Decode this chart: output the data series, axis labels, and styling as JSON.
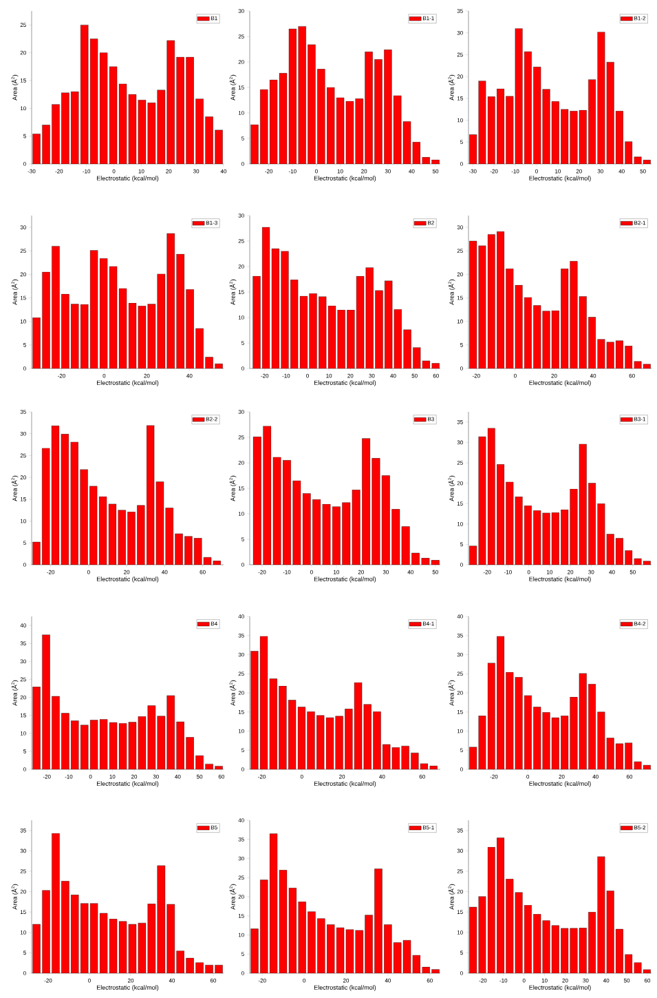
{
  "chart_data": [
    {
      "type": "histogram",
      "xlabel": "Electrostatic (kcal/mol)",
      "ylabel": "Area (Å$^{2}$)",
      "legend": "top right",
      "xlim": [
        -30,
        40
      ],
      "xticks": [
        -30,
        -20,
        -10,
        0,
        10,
        20,
        30,
        40
      ],
      "ylim": [
        0,
        27.5
      ],
      "yticks": [
        0,
        5,
        10,
        15,
        20,
        25
      ],
      "bins": [
        -30,
        -26.5,
        -23,
        -19.5,
        -16,
        -12.5,
        -9,
        -5.5,
        -2,
        1.5,
        5,
        8.5,
        12,
        15.5,
        19,
        22.5,
        26,
        29.5,
        33,
        36.5,
        40
      ],
      "series": [
        {
          "name": "B1",
          "color": "#ff0000",
          "values": [
            5.4,
            7.0,
            10.7,
            12.8,
            13.0,
            25.0,
            22.5,
            20.0,
            17.5,
            14.4,
            12.5,
            11.5,
            11.0,
            13.3,
            22.2,
            19.2,
            19.2,
            11.7,
            8.5,
            6.1
          ]
        }
      ]
    },
    {
      "type": "histogram",
      "xlabel": "Electrostatic (kcal/mol)",
      "ylabel": "Area (Å$^{2}$)",
      "legend": "top right",
      "xlim": [
        -28,
        52
      ],
      "xticks": [
        -20,
        -10,
        0,
        10,
        20,
        30,
        40,
        50
      ],
      "ylim": [
        0,
        30
      ],
      "yticks": [
        0,
        5,
        10,
        15,
        20,
        25,
        30
      ],
      "bins": [
        -28,
        -24,
        -20,
        -16,
        -12,
        -8,
        -4,
        0,
        4,
        8,
        12,
        16,
        20,
        24,
        28,
        32,
        36,
        40,
        44,
        48,
        52
      ],
      "series": [
        {
          "name": "B1-1",
          "color": "#ff0000",
          "values": [
            7.7,
            14.6,
            16.5,
            17.8,
            26.5,
            27.0,
            23.4,
            18.6,
            15.0,
            13.0,
            12.3,
            12.8,
            22.0,
            20.5,
            22.4,
            13.4,
            8.3,
            4.3,
            1.3,
            0.8
          ]
        }
      ]
    },
    {
      "type": "histogram",
      "xlabel": "Electrostatic (kcal/mol)",
      "ylabel": "Area (Å$^{2}$)",
      "legend": "top right",
      "xlim": [
        -32,
        54
      ],
      "xticks": [
        -30,
        -20,
        -10,
        0,
        10,
        20,
        30,
        40,
        50
      ],
      "ylim": [
        0,
        35
      ],
      "yticks": [
        0,
        5,
        10,
        15,
        20,
        25,
        30,
        35
      ],
      "bins": [
        -32,
        -27.7,
        -23.4,
        -19.1,
        -14.8,
        -10.5,
        -6.2,
        -1.9,
        2.4,
        6.7,
        11,
        15.3,
        19.6,
        23.9,
        28.2,
        32.5,
        36.8,
        41.1,
        45.4,
        49.7,
        54
      ],
      "series": [
        {
          "name": "B1-2",
          "color": "#ff0000",
          "values": [
            6.7,
            19.0,
            15.4,
            17.2,
            15.5,
            31.0,
            25.7,
            22.2,
            17.1,
            14.3,
            12.5,
            12.1,
            12.3,
            19.3,
            30.2,
            23.3,
            12.1,
            5.1,
            1.6,
            0.9
          ]
        }
      ]
    },
    {
      "type": "histogram",
      "xlabel": "Electrostatic (kcal/mol)",
      "ylabel": "Area (Å$^{2}$)",
      "legend": "top right",
      "xlim": [
        -34,
        56
      ],
      "xticks": [
        -20,
        0,
        20,
        40
      ],
      "ylim": [
        0,
        32.5
      ],
      "yticks": [
        0,
        5,
        10,
        15,
        20,
        25,
        30
      ],
      "bins": [
        -34,
        -29.5,
        -25,
        -20.5,
        -16,
        -11.5,
        -7,
        -2.5,
        2,
        6.5,
        11,
        15.5,
        20,
        24.5,
        29,
        33.5,
        38,
        42.5,
        47,
        51.5,
        56
      ],
      "series": [
        {
          "name": "B1-3",
          "color": "#ff0000",
          "values": [
            10.8,
            20.5,
            26.0,
            15.8,
            13.7,
            13.6,
            25.1,
            23.4,
            21.7,
            17.0,
            13.9,
            13.3,
            13.7,
            20.1,
            28.7,
            24.3,
            16.8,
            8.5,
            2.4,
            1.0
          ]
        }
      ]
    },
    {
      "type": "histogram",
      "xlabel": "Electrostatic (kcal/mol)",
      "ylabel": "Area (Å$^{2}$)",
      "legend": "top right",
      "xlim": [
        -27,
        62
      ],
      "xticks": [
        -20,
        -10,
        0,
        10,
        20,
        30,
        40,
        50,
        60
      ],
      "ylim": [
        0,
        30
      ],
      "yticks": [
        0,
        5,
        10,
        15,
        20,
        25,
        30
      ],
      "bins": [
        -26,
        -21.6,
        -17.2,
        -12.8,
        -8.4,
        -4,
        0.4,
        4.8,
        9.2,
        13.6,
        18,
        22.4,
        26.8,
        31.2,
        35.6,
        40,
        44.4,
        48.8,
        53.2,
        57.6,
        62
      ],
      "series": [
        {
          "name": "B2",
          "color": "#ff0000",
          "values": [
            18.1,
            27.7,
            23.5,
            23.0,
            17.4,
            14.2,
            14.7,
            14.1,
            12.3,
            11.5,
            11.5,
            18.1,
            19.8,
            15.3,
            17.2,
            11.6,
            7.6,
            4.1,
            1.5,
            1.0
          ]
        }
      ]
    },
    {
      "type": "histogram",
      "xlabel": "Electrostatic (kcal/mol)",
      "ylabel": "Area (Å$^{2}$)",
      "legend": "top right",
      "xlim": [
        -24,
        70
      ],
      "xticks": [
        -20,
        0,
        20,
        40,
        60
      ],
      "ylim": [
        0,
        32.5
      ],
      "yticks": [
        0,
        5,
        10,
        15,
        20,
        25,
        30
      ],
      "bins": [
        -24,
        -19.3,
        -14.6,
        -9.9,
        -5.2,
        -0.5,
        4.2,
        8.9,
        13.6,
        18.3,
        23,
        27.7,
        32.4,
        37.1,
        41.8,
        46.5,
        51.2,
        55.9,
        60.6,
        65.3,
        70
      ],
      "series": [
        {
          "name": "B2-1",
          "color": "#ff0000",
          "values": [
            27.1,
            26.1,
            28.5,
            29.1,
            21.2,
            17.7,
            15.1,
            13.4,
            12.2,
            12.3,
            21.2,
            22.8,
            15.3,
            10.9,
            6.2,
            5.6,
            5.9,
            4.8,
            1.5,
            0.9
          ]
        }
      ]
    },
    {
      "type": "histogram",
      "xlabel": "Electrostatic (kcal/mol)",
      "ylabel": "Area (Å$^{2}$)",
      "legend": "top right",
      "xlim": [
        -30,
        71
      ],
      "xticks": [
        -20,
        0,
        20,
        40,
        60
      ],
      "ylim": [
        0,
        35
      ],
      "yticks": [
        0,
        5,
        10,
        15,
        20,
        25,
        30,
        35
      ],
      "bins": [
        -30,
        -25,
        -20,
        -15,
        -10,
        -5,
        0,
        5,
        10,
        15,
        20,
        25,
        30,
        35,
        40,
        45,
        50,
        55,
        60,
        65,
        70
      ],
      "series": [
        {
          "name": "B2-2",
          "color": "#ff0000",
          "values": [
            5.2,
            26.7,
            31.8,
            29.9,
            28.1,
            21.8,
            18.0,
            15.6,
            13.9,
            12.5,
            12.1,
            13.6,
            31.9,
            19.0,
            13.0,
            7.1,
            6.5,
            6.1,
            1.7,
            0.9
          ]
        }
      ]
    },
    {
      "type": "histogram",
      "xlabel": "Electrostatic (kcal/mol)",
      "ylabel": "Area (Å$^{2}$)",
      "legend": "top right",
      "xlim": [
        -25,
        52
      ],
      "xticks": [
        -20,
        -10,
        0,
        10,
        20,
        30,
        40,
        50
      ],
      "ylim": [
        0,
        30
      ],
      "yticks": [
        0,
        5,
        10,
        15,
        20,
        25,
        30
      ],
      "bins": [
        -24,
        -20,
        -16,
        -12,
        -8,
        -4,
        0,
        4,
        8,
        12,
        16,
        20,
        24,
        28,
        32,
        36,
        40,
        44,
        48,
        52
      ],
      "series": [
        {
          "name": "B3",
          "color": "#ff0000",
          "values": [
            25.1,
            27.2,
            21.1,
            20.5,
            16.5,
            14.0,
            12.8,
            11.9,
            11.4,
            12.2,
            14.7,
            24.8,
            20.9,
            17.5,
            10.9,
            7.5,
            2.3,
            1.3,
            0.9
          ]
        }
      ]
    },
    {
      "type": "histogram",
      "xlabel": "Electrostatic (kcal/mol)",
      "ylabel": "Area (Å$^{2}$)",
      "legend": "top right",
      "xlim": [
        -29,
        59
      ],
      "xticks": [
        -20,
        -10,
        0,
        10,
        20,
        30,
        40,
        50
      ],
      "ylim": [
        0,
        37.5
      ],
      "yticks": [
        0,
        5,
        10,
        15,
        20,
        25,
        30,
        35
      ],
      "bins": [
        -29,
        -24.6,
        -20.2,
        -15.8,
        -11.4,
        -7,
        -2.6,
        1.8,
        6.2,
        10.6,
        15,
        19.4,
        23.8,
        28.2,
        32.6,
        37,
        41.4,
        45.8,
        50.2,
        54.6,
        59
      ],
      "series": [
        {
          "name": "B3-1",
          "color": "#ff0000",
          "values": [
            4.6,
            31.4,
            33.5,
            24.6,
            20.3,
            16.7,
            14.5,
            13.3,
            12.7,
            12.8,
            13.5,
            18.6,
            29.6,
            20.0,
            15.0,
            7.5,
            6.5,
            3.5,
            1.5,
            0.9
          ]
        }
      ]
    },
    {
      "type": "histogram",
      "xlabel": "Electrostatic (kcal/mol)",
      "ylabel": "Area (Å$^{2}$)",
      "legend": "top right",
      "xlim": [
        -27,
        61
      ],
      "xticks": [
        -20,
        -10,
        0,
        10,
        20,
        30,
        40,
        50,
        60
      ],
      "ylim": [
        0,
        42.5
      ],
      "yticks": [
        0,
        5,
        10,
        15,
        20,
        25,
        30,
        35,
        40
      ],
      "bins": [
        -27,
        -22.6,
        -18.2,
        -13.8,
        -9.4,
        -5,
        -0.6,
        3.8,
        8.2,
        12.6,
        17,
        21.4,
        25.8,
        30.2,
        34.6,
        39,
        43.4,
        47.8,
        52.2,
        56.6,
        61
      ],
      "series": [
        {
          "name": "B4",
          "color": "#ff0000",
          "values": [
            22.9,
            37.4,
            20.3,
            15.6,
            13.5,
            12.3,
            13.7,
            13.9,
            13.0,
            12.8,
            13.1,
            14.7,
            17.7,
            14.8,
            20.5,
            13.2,
            8.9,
            3.8,
            1.5,
            0.9
          ]
        }
      ]
    },
    {
      "type": "histogram",
      "xlabel": "Electrostatic (kcal/mol)",
      "ylabel": "Area (Å$^{2}$)",
      "legend": "top right",
      "xlim": [
        -26,
        69
      ],
      "xticks": [
        -20,
        0,
        20,
        40,
        60
      ],
      "ylim": [
        0,
        40
      ],
      "yticks": [
        0,
        5,
        10,
        15,
        20,
        25,
        30,
        35,
        40
      ],
      "bins": [
        -26,
        -21.3,
        -16.6,
        -11.9,
        -7.2,
        -2.5,
        2.2,
        6.9,
        11.6,
        16.3,
        21,
        25.7,
        30.4,
        35.1,
        39.8,
        44.5,
        49.2,
        53.9,
        58.6,
        63.3,
        68
      ],
      "series": [
        {
          "name": "B4-1",
          "color": "#ff0000",
          "values": [
            30.9,
            34.8,
            23.7,
            21.8,
            18.1,
            16.3,
            15.1,
            14.1,
            13.5,
            13.9,
            15.8,
            22.7,
            17.0,
            15.1,
            6.5,
            5.7,
            6.1,
            4.3,
            1.5,
            0.9
          ]
        }
      ]
    },
    {
      "type": "histogram",
      "xlabel": "Electrostatic (kcal/mol)",
      "ylabel": "Area (Å$^{2}$)",
      "legend": "top right",
      "xlim": [
        -35,
        73
      ],
      "xticks": [
        -20,
        0,
        20,
        40,
        60
      ],
      "ylim": [
        0,
        40
      ],
      "yticks": [
        0,
        5,
        10,
        15,
        20,
        25,
        30,
        35,
        40
      ],
      "bins": [
        -35,
        -29.6,
        -24.2,
        -18.8,
        -13.4,
        -8,
        -2.6,
        2.8,
        8.2,
        13.6,
        19,
        24.4,
        29.8,
        35.2,
        40.6,
        46,
        51.4,
        56.8,
        62.2,
        67.6,
        73
      ],
      "series": [
        {
          "name": "B4-2",
          "color": "#ff0000",
          "values": [
            5.8,
            14.0,
            27.8,
            34.8,
            25.4,
            24.1,
            19.3,
            16.3,
            14.9,
            13.5,
            14.0,
            18.9,
            25.1,
            22.3,
            15.0,
            8.2,
            6.7,
            6.9,
            2.0,
            1.1
          ]
        }
      ]
    },
    {
      "type": "histogram",
      "xlabel": "Electrostatic (kcal/mol)",
      "ylabel": "Area (Å$^{2}$)",
      "legend": "top right",
      "xlim": [
        -28,
        65
      ],
      "xticks": [
        -20,
        0,
        20,
        40,
        60
      ],
      "ylim": [
        0,
        37.5
      ],
      "yticks": [
        0,
        5,
        10,
        15,
        20,
        25,
        30,
        35
      ],
      "bins": [
        -28,
        -23.35,
        -18.7,
        -14.05,
        -9.4,
        -4.75,
        -0.1,
        4.55,
        9.2,
        13.85,
        18.5,
        23.15,
        27.8,
        32.45,
        37.1,
        41.75,
        46.4,
        51.05,
        55.7,
        60.35,
        65
      ],
      "series": [
        {
          "name": "B5",
          "color": "#ff0000",
          "values": [
            12.0,
            20.3,
            34.3,
            22.6,
            19.2,
            17.1,
            17.1,
            14.7,
            13.3,
            12.7,
            12.0,
            12.3,
            17.0,
            26.4,
            16.9,
            5.5,
            3.7,
            2.6,
            2.0,
            2.0
          ]
        }
      ]
    },
    {
      "type": "histogram",
      "xlabel": "Electrostatic (kcal/mol)",
      "ylabel": "Area (Å$^{2}$)",
      "legend": "top right",
      "xlim": [
        -26,
        65
      ],
      "xticks": [
        -20,
        0,
        20,
        40,
        60
      ],
      "ylim": [
        0,
        40
      ],
      "yticks": [
        0,
        5,
        10,
        15,
        20,
        25,
        30,
        35,
        40
      ],
      "bins": [
        -26,
        -21.45,
        -16.9,
        -12.35,
        -7.8,
        -3.25,
        1.3,
        5.85,
        10.4,
        14.95,
        19.5,
        24.05,
        28.6,
        33.15,
        37.7,
        42.25,
        46.8,
        51.35,
        55.9,
        60.45,
        65
      ],
      "series": [
        {
          "name": "B5-1",
          "color": "#ff0000",
          "values": [
            11.6,
            24.4,
            36.5,
            27.0,
            22.3,
            18.7,
            16.1,
            14.3,
            12.7,
            11.9,
            11.4,
            11.2,
            15.2,
            27.3,
            12.7,
            8.0,
            8.6,
            4.7,
            1.6,
            1.0
          ]
        }
      ]
    },
    {
      "type": "histogram",
      "xlabel": "Electrostatic (kcal/mol)",
      "ylabel": "Area (Å$^{2}$)",
      "legend": "top right",
      "xlim": [
        -27,
        62
      ],
      "xticks": [
        -20,
        -10,
        0,
        10,
        20,
        30,
        40,
        50,
        60
      ],
      "ylim": [
        0,
        37.5
      ],
      "yticks": [
        0,
        5,
        10,
        15,
        20,
        25,
        30,
        35
      ],
      "bins": [
        -27,
        -22.55,
        -18.1,
        -13.65,
        -9.2,
        -4.75,
        -0.3,
        4.15,
        8.6,
        13.05,
        17.5,
        21.95,
        26.4,
        30.85,
        35.3,
        39.75,
        44.2,
        48.65,
        53.1,
        57.55,
        62
      ],
      "series": [
        {
          "name": "B5-2",
          "color": "#ff0000",
          "values": [
            16.2,
            18.8,
            30.9,
            33.2,
            23.1,
            19.8,
            16.7,
            14.5,
            12.9,
            11.7,
            11.0,
            11.0,
            11.1,
            15.0,
            28.6,
            20.2,
            10.8,
            4.6,
            2.6,
            0.9
          ]
        }
      ]
    }
  ]
}
